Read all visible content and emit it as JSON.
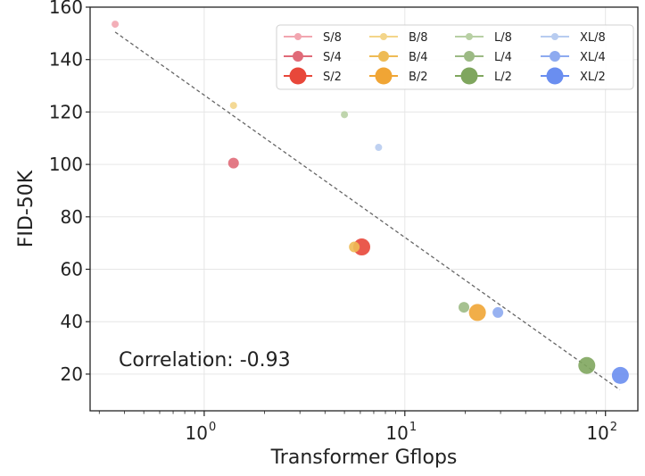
{
  "chart_data": {
    "type": "scatter",
    "xlabel": "Transformer Gflops",
    "ylabel": "FID-50K",
    "xscale": "log",
    "xlim": [
      0.27,
      145
    ],
    "ylim": [
      6,
      160
    ],
    "grid": true,
    "legend_position": "top-right",
    "legend_columns": 4,
    "y_ticks": [
      "20",
      "40",
      "60",
      "80",
      "100",
      "120",
      "140",
      "160"
    ],
    "x_ticks": [
      {
        "value": 1,
        "base": "10",
        "exp": "0"
      },
      {
        "value": 10,
        "base": "10",
        "exp": "1"
      },
      {
        "value": 100,
        "base": "10",
        "exp": "2"
      }
    ],
    "annotation": "Correlation: -0.93",
    "trend_line": {
      "x": [
        0.36,
        118
      ],
      "y": [
        150.5,
        14
      ],
      "style": "dashed",
      "color": "#666666"
    },
    "series": [
      {
        "name": "S/8",
        "color": "#f2a6b0",
        "size": "small",
        "x": 0.36,
        "y": 153.5
      },
      {
        "name": "S/4",
        "color": "#e06a78",
        "size": "medium",
        "x": 1.4,
        "y": 100.5
      },
      {
        "name": "S/2",
        "color": "#e8473a",
        "size": "large",
        "x": 6.1,
        "y": 68.5
      },
      {
        "name": "B/8",
        "color": "#f3d58a",
        "size": "small",
        "x": 1.4,
        "y": 122.5
      },
      {
        "name": "B/4",
        "color": "#eebb55",
        "size": "medium",
        "x": 5.6,
        "y": 68.5
      },
      {
        "name": "B/2",
        "color": "#f0a535",
        "size": "large",
        "x": 23.0,
        "y": 43.5
      },
      {
        "name": "L/8",
        "color": "#b8d0a4",
        "size": "small",
        "x": 5.0,
        "y": 119.0
      },
      {
        "name": "L/4",
        "color": "#9cba84",
        "size": "medium",
        "x": 19.7,
        "y": 45.5
      },
      {
        "name": "L/2",
        "color": "#7fa65e",
        "size": "large",
        "x": 80.7,
        "y": 23.3
      },
      {
        "name": "XL/8",
        "color": "#b8ccf0",
        "size": "small",
        "x": 7.4,
        "y": 106.5
      },
      {
        "name": "XL/4",
        "color": "#8daaf0",
        "size": "medium",
        "x": 29.1,
        "y": 43.5
      },
      {
        "name": "XL/2",
        "color": "#6a8ef0",
        "size": "large",
        "x": 118.6,
        "y": 19.5
      }
    ]
  }
}
